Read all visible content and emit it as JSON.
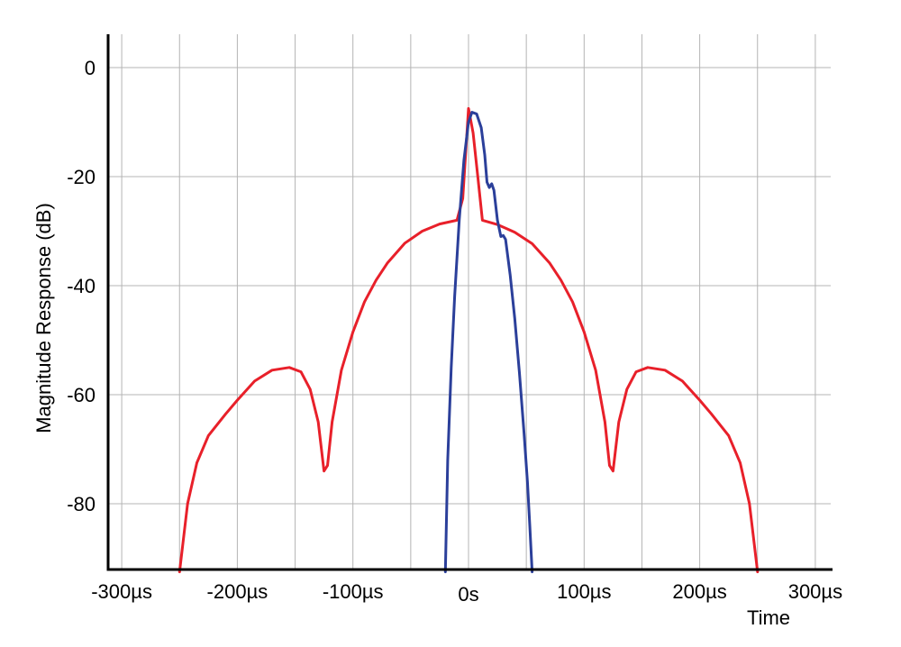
{
  "chart_data": {
    "type": "line",
    "title": "",
    "xlabel": "Time",
    "ylabel": "Magnitude Response (dB)",
    "xlim": [
      -300,
      300
    ],
    "ylim": [
      -92.5,
      6
    ],
    "grid": true,
    "x_ticks": [
      {
        "value": -300,
        "label": "-300µs"
      },
      {
        "value": -200,
        "label": "-200µs"
      },
      {
        "value": -100,
        "label": "-100µs"
      },
      {
        "value": 0,
        "label": "0s"
      },
      {
        "value": 100,
        "label": "100µs"
      },
      {
        "value": 200,
        "label": "200µs"
      },
      {
        "value": 300,
        "label": "300µs"
      }
    ],
    "x_grid": [
      -300,
      -250,
      -200,
      -150,
      -100,
      -50,
      0,
      50,
      100,
      150,
      200,
      250,
      300
    ],
    "y_ticks": [
      {
        "value": 0,
        "label": "0"
      },
      {
        "value": -20,
        "label": "-20"
      },
      {
        "value": -40,
        "label": "-40"
      },
      {
        "value": -60,
        "label": "-60"
      },
      {
        "value": -80,
        "label": "-80"
      }
    ],
    "series": [
      {
        "color": "#e8202a",
        "points": [
          [
            -250,
            -92.5
          ],
          [
            -243,
            -80
          ],
          [
            -235,
            -72.5
          ],
          [
            -225,
            -67.5
          ],
          [
            -210,
            -63.5
          ],
          [
            -200,
            -61
          ],
          [
            -185,
            -57.5
          ],
          [
            -170,
            -55.5
          ],
          [
            -155,
            -55
          ],
          [
            -145,
            -55.8
          ],
          [
            -137,
            -59
          ],
          [
            -130,
            -65
          ],
          [
            -125,
            -74
          ],
          [
            -122,
            -73
          ],
          [
            -118,
            -65
          ],
          [
            -110,
            -55.5
          ],
          [
            -100,
            -48.5
          ],
          [
            -90,
            -43
          ],
          [
            -80,
            -39
          ],
          [
            -70,
            -35.8
          ],
          [
            -55,
            -32.2
          ],
          [
            -40,
            -30
          ],
          [
            -25,
            -28.7
          ],
          [
            -10,
            -28
          ],
          [
            -5,
            -24
          ],
          [
            0,
            -7.5
          ],
          [
            4,
            -12
          ],
          [
            8,
            -20
          ],
          [
            12,
            -28
          ],
          [
            25,
            -28.8
          ],
          [
            40,
            -30.2
          ],
          [
            55,
            -32.3
          ],
          [
            70,
            -35.8
          ],
          [
            80,
            -39
          ],
          [
            90,
            -43
          ],
          [
            100,
            -48.5
          ],
          [
            110,
            -55.5
          ],
          [
            118,
            -65
          ],
          [
            122,
            -73
          ],
          [
            125,
            -74
          ],
          [
            130,
            -65
          ],
          [
            137,
            -59
          ],
          [
            145,
            -55.8
          ],
          [
            155,
            -55
          ],
          [
            170,
            -55.5
          ],
          [
            185,
            -57.5
          ],
          [
            200,
            -61
          ],
          [
            210,
            -63.5
          ],
          [
            225,
            -67.5
          ],
          [
            235,
            -72.5
          ],
          [
            243,
            -80
          ],
          [
            250,
            -92.5
          ]
        ]
      },
      {
        "color": "#2b3f9a",
        "points": [
          [
            -20,
            -92.5
          ],
          [
            -18,
            -72
          ],
          [
            -15,
            -55
          ],
          [
            -12,
            -42
          ],
          [
            -8,
            -28
          ],
          [
            -4,
            -17
          ],
          [
            0,
            -10
          ],
          [
            3,
            -8.2
          ],
          [
            7,
            -8.5
          ],
          [
            11,
            -11
          ],
          [
            14,
            -16
          ],
          [
            16,
            -21
          ],
          [
            18,
            -22
          ],
          [
            20,
            -21.3
          ],
          [
            22,
            -22.5
          ],
          [
            25,
            -28
          ],
          [
            28,
            -31
          ],
          [
            30,
            -30.8
          ],
          [
            32,
            -31.5
          ],
          [
            36,
            -38
          ],
          [
            40,
            -46
          ],
          [
            44,
            -56
          ],
          [
            48,
            -67
          ],
          [
            51,
            -76
          ],
          [
            53,
            -84
          ],
          [
            55,
            -92.5
          ]
        ]
      }
    ]
  }
}
